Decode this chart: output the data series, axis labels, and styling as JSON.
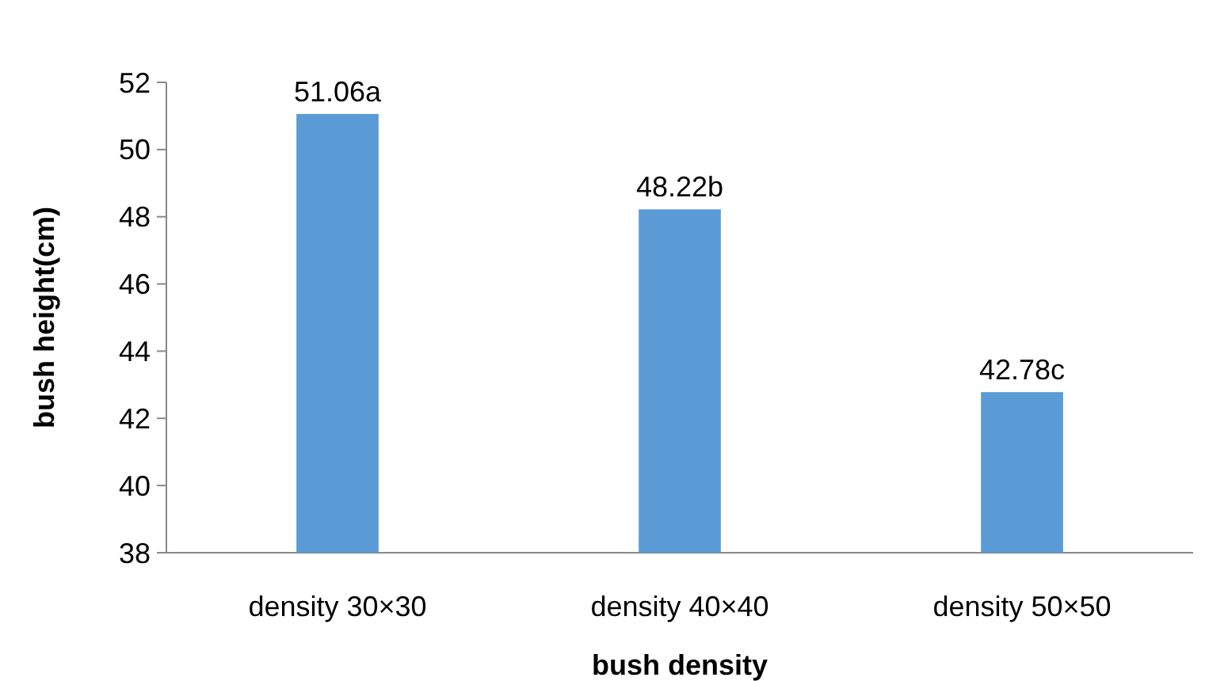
{
  "chart_data": {
    "type": "bar",
    "xlabel": "bush density",
    "ylabel": "bush height(cm)",
    "categories": [
      "density 30×30",
      "density 40×40",
      "density 50×50"
    ],
    "values": [
      51.06,
      48.22,
      42.78
    ],
    "value_labels": [
      "51.06a",
      "48.22b",
      "42.78c"
    ],
    "color": "#5b9bd5",
    "ylim": [
      38,
      52
    ],
    "yticks": [
      38,
      40,
      42,
      44,
      46,
      48,
      50,
      52
    ]
  }
}
